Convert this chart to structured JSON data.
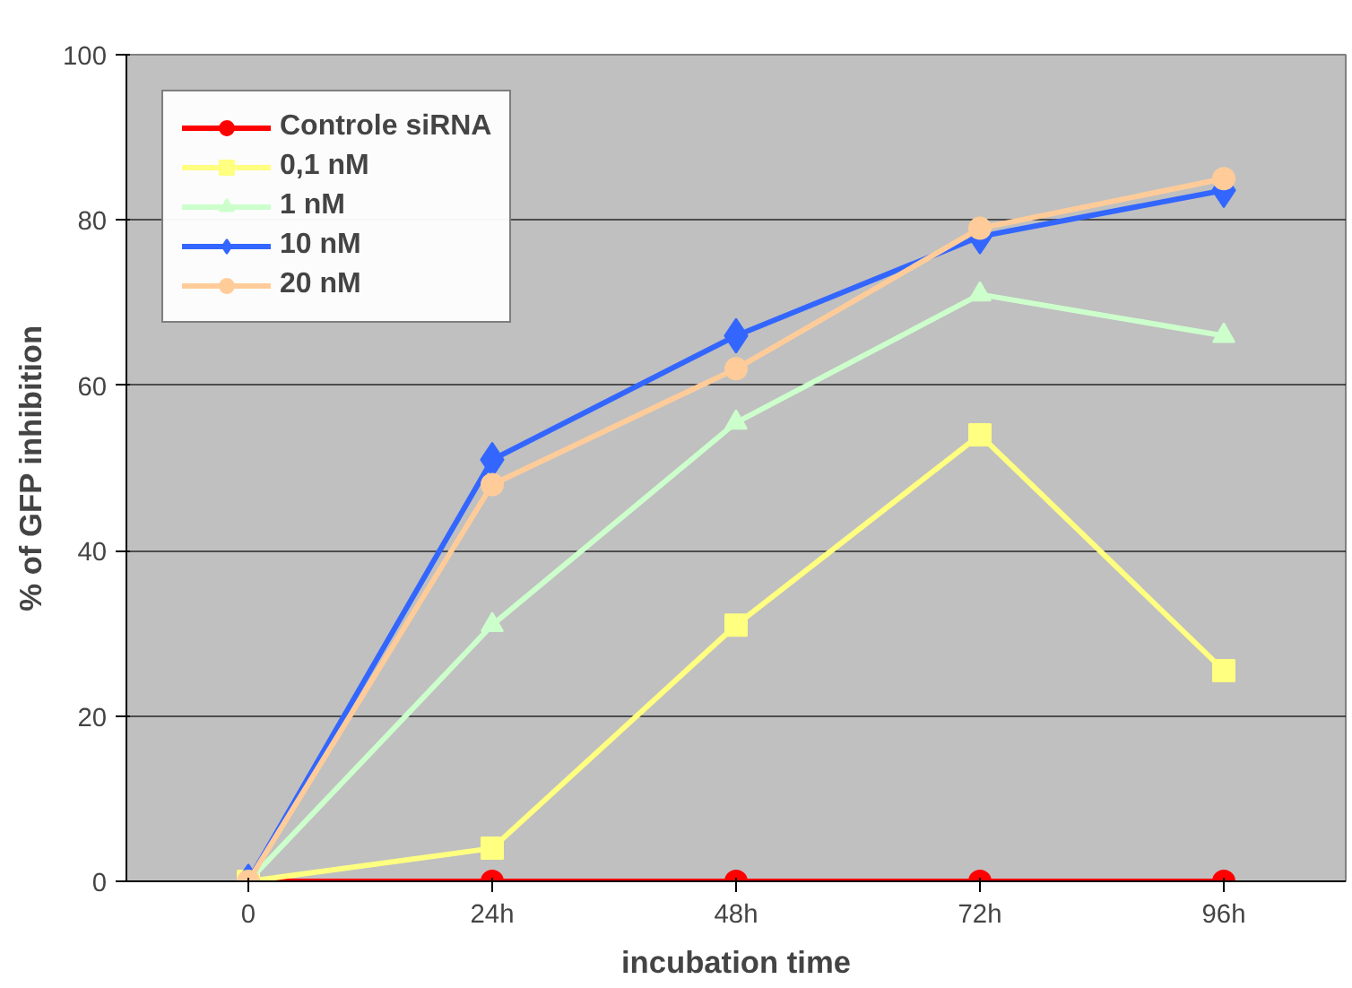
{
  "chart_data": {
    "type": "line",
    "xlabel": "incubation time",
    "ylabel": "% of GFP inhibition",
    "categories": [
      "0",
      "24h",
      "48h",
      "72h",
      "96h"
    ],
    "ylim": [
      0,
      100
    ],
    "yticks": [
      0,
      20,
      40,
      60,
      80,
      100
    ],
    "grid": "y",
    "legend": "top left",
    "series": [
      {
        "name": "Controle siRNA",
        "color": "#ff0000",
        "marker": "circle",
        "values": [
          0,
          0,
          0,
          0,
          0
        ]
      },
      {
        "name": "0,1 nM",
        "color": "#ffff80",
        "marker": "square",
        "values": [
          0,
          4,
          31,
          54,
          25.5
        ]
      },
      {
        "name": "1 nM",
        "color": "#ccffcc",
        "marker": "triangle",
        "values": [
          0,
          31,
          55.5,
          71,
          66
        ]
      },
      {
        "name": "10 nM",
        "color": "#3366ff",
        "marker": "diamond",
        "values": [
          0,
          51,
          66,
          78,
          83.6
        ]
      },
      {
        "name": "20 nM",
        "color": "#ffcc99",
        "marker": "circle",
        "values": [
          0,
          48,
          62,
          79,
          85
        ]
      }
    ]
  }
}
